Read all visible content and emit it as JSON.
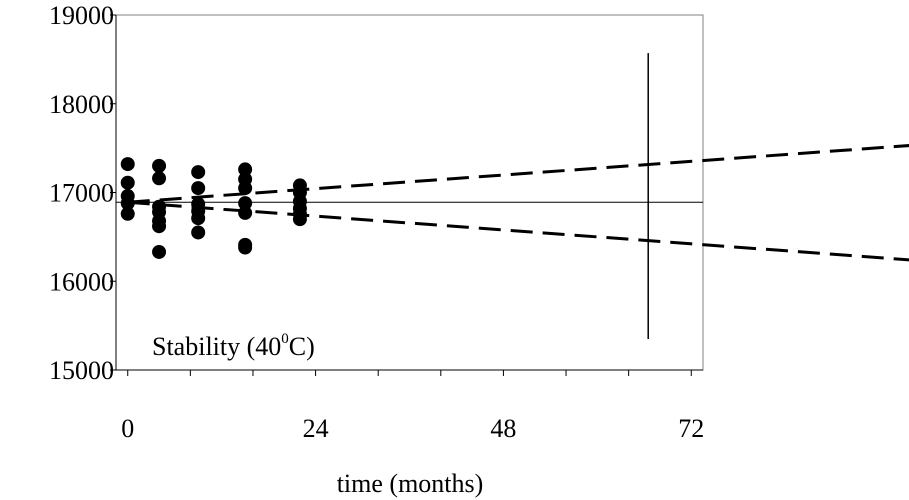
{
  "chart_data": {
    "type": "scatter",
    "title": "",
    "xlabel": "time (months)",
    "ylabel": "",
    "xlim": [
      -1.5,
      73.5
    ],
    "ylim": [
      15000,
      19000
    ],
    "x_ticks": [
      0,
      24,
      48,
      72
    ],
    "x_tick_labels": [
      "0",
      "24",
      "48",
      "72"
    ],
    "y_ticks": [
      15000,
      16000,
      17000,
      18000,
      19000
    ],
    "y_tick_labels": [
      "15000",
      "16000",
      "17000",
      "18000",
      "19000"
    ],
    "grid": false,
    "annotation": {
      "text_before": "Stability (40",
      "superscript": "0",
      "text_after": "C)"
    },
    "points": [
      {
        "x": 0,
        "y": 17320
      },
      {
        "x": 0,
        "y": 17110
      },
      {
        "x": 0,
        "y": 16960
      },
      {
        "x": 0,
        "y": 16880
      },
      {
        "x": 0,
        "y": 16760
      },
      {
        "x": 4,
        "y": 17300
      },
      {
        "x": 4,
        "y": 17160
      },
      {
        "x": 4,
        "y": 16840
      },
      {
        "x": 4,
        "y": 16780
      },
      {
        "x": 4,
        "y": 16680
      },
      {
        "x": 4,
        "y": 16620
      },
      {
        "x": 4,
        "y": 16330
      },
      {
        "x": 9,
        "y": 17230
      },
      {
        "x": 9,
        "y": 17050
      },
      {
        "x": 9,
        "y": 16870
      },
      {
        "x": 9,
        "y": 16790
      },
      {
        "x": 9,
        "y": 16710
      },
      {
        "x": 9,
        "y": 16550
      },
      {
        "x": 15,
        "y": 17260
      },
      {
        "x": 15,
        "y": 17150
      },
      {
        "x": 15,
        "y": 17050
      },
      {
        "x": 15,
        "y": 16880
      },
      {
        "x": 15,
        "y": 16770
      },
      {
        "x": 15,
        "y": 16410
      },
      {
        "x": 15,
        "y": 16380
      },
      {
        "x": 22,
        "y": 17080
      },
      {
        "x": 22,
        "y": 17000
      },
      {
        "x": 22,
        "y": 16900
      },
      {
        "x": 22,
        "y": 16820
      },
      {
        "x": 22,
        "y": 16760
      },
      {
        "x": 22,
        "y": 16700
      }
    ],
    "mean_line": {
      "y": 16890,
      "x_start": -1.5,
      "x_end": 73.5
    },
    "upper_bound": [
      {
        "x": 0,
        "y": 16890
      },
      {
        "x": 100,
        "y": 17530
      }
    ],
    "lower_bound": [
      {
        "x": 0,
        "y": 16890
      },
      {
        "x": 100,
        "y": 16240
      }
    ],
    "shelf_life_line": {
      "x": 66.5,
      "y_low": 15350,
      "y_high": 18570
    }
  }
}
